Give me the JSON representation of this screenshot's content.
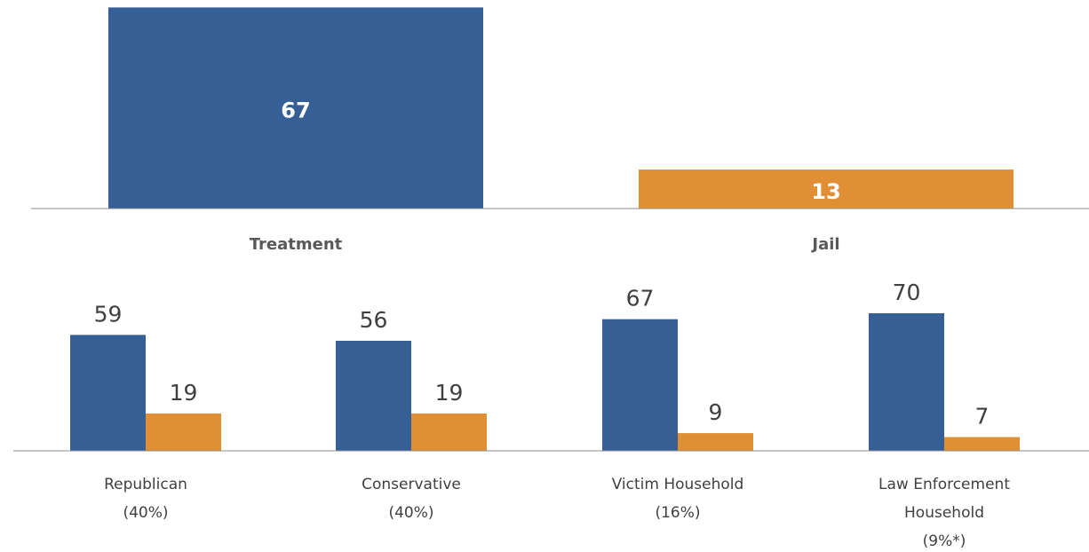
{
  "chart_data": [
    {
      "type": "bar",
      "categories": [
        "Treatment",
        "Jail"
      ],
      "values": [
        67,
        13
      ],
      "colors": [
        "#365f96",
        "#e08f35"
      ],
      "ylim": [
        0,
        68
      ]
    },
    {
      "type": "grouped_bar",
      "categories": [
        [
          "Republican",
          "(40%)"
        ],
        [
          "Conservative",
          "(40%)"
        ],
        [
          "Victim Household",
          "(16%)"
        ],
        [
          "Law Enforcement",
          "Household",
          "(9%*)"
        ]
      ],
      "series": [
        {
          "color": "#365f96",
          "values": [
            59,
            56,
            67,
            70
          ]
        },
        {
          "color": "#e08f35",
          "values": [
            19,
            19,
            9,
            7
          ]
        }
      ],
      "ylim": [
        0,
        70
      ]
    }
  ]
}
